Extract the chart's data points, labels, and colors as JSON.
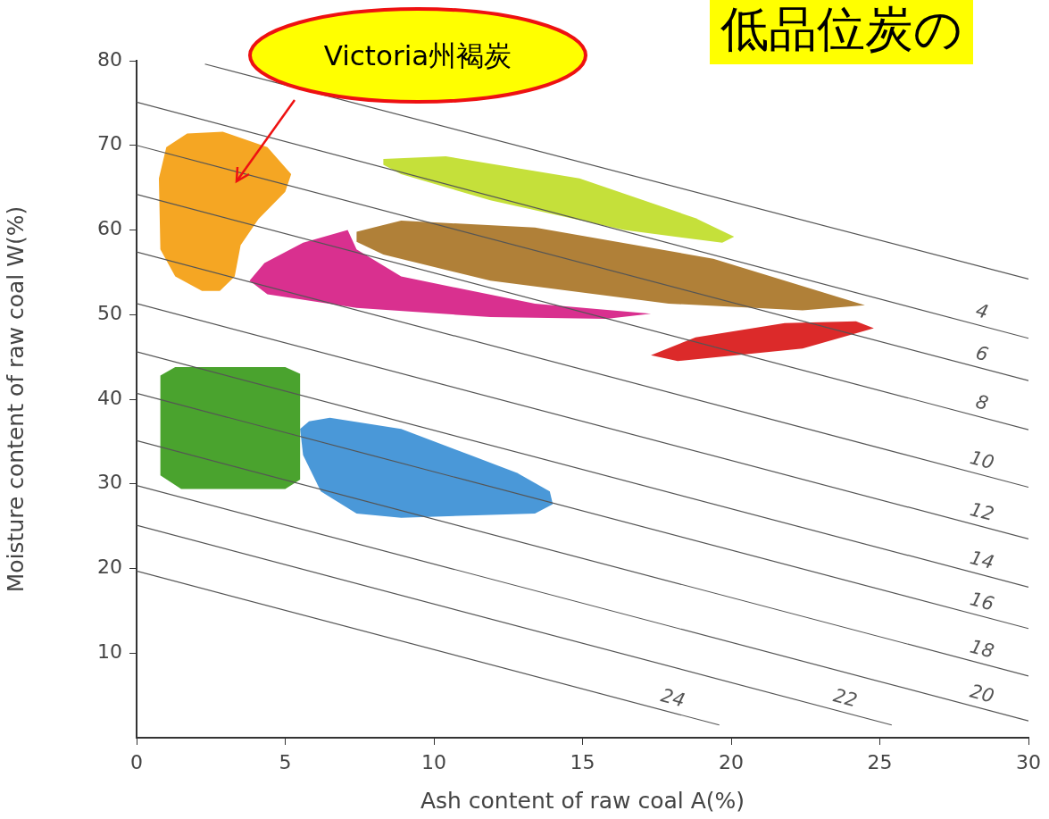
{
  "chart_data": {
    "type": "line",
    "title": "低品位炭の",
    "xlabel": "Ash content of raw coal A(%)",
    "ylabel": "Moisture content of raw coal W(%)",
    "xlim": [
      0,
      30
    ],
    "xticks": [
      0,
      5,
      10,
      15,
      20,
      25,
      30
    ],
    "ylim": [
      0,
      80
    ],
    "yticks": [
      10,
      20,
      30,
      40,
      50,
      60,
      70,
      80
    ],
    "grid": false,
    "legend": false,
    "marker": "none",
    "line_style": "solid",
    "annotations": [
      "Victoria州褐炭"
    ],
    "series": [
      {
        "color": "#555555",
        "x": [
          2.3,
          30
        ],
        "values": [
          79.6,
          54.2
        ]
      },
      {
        "name": "4",
        "color": "#555555",
        "x": [
          0,
          30
        ],
        "values": [
          75.1,
          47.2
        ]
      },
      {
        "name": "6",
        "color": "#555555",
        "x": [
          0,
          30
        ],
        "values": [
          70.0,
          42.2
        ]
      },
      {
        "name": "8",
        "color": "#555555",
        "x": [
          0,
          30
        ],
        "values": [
          64.2,
          36.4
        ]
      },
      {
        "name": "10",
        "color": "#555555",
        "x": [
          0,
          30
        ],
        "values": [
          57.4,
          29.6
        ]
      },
      {
        "name": "12",
        "color": "#555555",
        "x": [
          0,
          30
        ],
        "values": [
          51.3,
          23.5
        ]
      },
      {
        "name": "14",
        "color": "#555555",
        "x": [
          0,
          30
        ],
        "values": [
          45.6,
          17.8
        ]
      },
      {
        "name": "16",
        "color": "#555555",
        "x": [
          0,
          30
        ],
        "values": [
          40.7,
          12.9
        ]
      },
      {
        "name": "18",
        "color": "#555555",
        "x": [
          0,
          30
        ],
        "values": [
          35.1,
          7.3
        ]
      },
      {
        "name": "20",
        "color": "#555555",
        "x": [
          0,
          30
        ],
        "values": [
          29.8,
          2.0
        ]
      },
      {
        "name": "22",
        "color": "#555555",
        "x": [
          0,
          25.4
        ],
        "values": [
          25.1,
          1.5
        ]
      },
      {
        "name": "24",
        "color": "#555555",
        "x": [
          0,
          19.6
        ],
        "values": [
          19.7,
          1.5
        ]
      },
      {
        "type": "area",
        "color": "#f5a623",
        "x": [
          1.7,
          2.9,
          4.4,
          5.2,
          5.0,
          4.1,
          3.5,
          3.3,
          2.8,
          2.2,
          1.3,
          0.8,
          0.75,
          1.0
        ],
        "values": [
          71.4,
          71.6,
          69.8,
          66.6,
          64.5,
          61.3,
          58.2,
          54.5,
          52.8,
          52.8,
          54.5,
          57.7,
          66.1,
          69.8
        ]
      },
      {
        "type": "area",
        "color": "#c5e03a",
        "x": [
          8.3,
          10.4,
          14.9,
          18.8,
          20.1,
          19.7,
          16.4,
          11.9,
          8.9,
          8.3
        ],
        "values": [
          68.4,
          68.7,
          66.1,
          61.4,
          59.2,
          58.5,
          60.0,
          63.5,
          66.6,
          67.7
        ]
      },
      {
        "type": "area",
        "color": "#d9308f",
        "x": [
          7.1,
          5.6,
          4.3,
          3.8,
          4.4,
          7.4,
          11.9,
          15.8,
          17.3,
          13.4,
          8.9,
          7.4
        ],
        "values": [
          60.0,
          58.5,
          56.1,
          54.0,
          52.4,
          50.8,
          49.7,
          49.5,
          50.1,
          51.3,
          54.5,
          57.7
        ]
      },
      {
        "type": "area",
        "color": "#b08038",
        "x": [
          7.4,
          8.9,
          13.4,
          19.4,
          24.5,
          22.4,
          17.9,
          11.9,
          8.3,
          7.4
        ],
        "values": [
          59.8,
          61.1,
          60.3,
          56.6,
          51.1,
          50.5,
          51.3,
          54.0,
          57.1,
          58.6
        ]
      },
      {
        "type": "area",
        "color": "#dc2a2a",
        "x": [
          17.3,
          18.2,
          22.4,
          24.8,
          24.2,
          21.8,
          18.8
        ],
        "values": [
          45.2,
          44.5,
          46.0,
          48.4,
          49.2,
          49.0,
          47.3
        ]
      },
      {
        "type": "area",
        "color": "#4aa32e",
        "x": [
          1.3,
          5.0,
          5.5,
          5.5,
          5.0,
          1.5,
          0.8,
          0.8
        ],
        "values": [
          43.8,
          43.8,
          43.0,
          30.5,
          29.4,
          29.4,
          31.0,
          42.8
        ]
      },
      {
        "type": "area",
        "color": "#4a98d8",
        "x": [
          5.8,
          6.5,
          8.9,
          12.8,
          13.9,
          14.0,
          13.4,
          8.9,
          7.4,
          6.2,
          5.6,
          5.5
        ],
        "values": [
          37.4,
          37.8,
          36.5,
          31.3,
          29.1,
          27.6,
          26.5,
          26.0,
          26.5,
          29.1,
          33.4,
          36.5
        ]
      }
    ]
  }
}
